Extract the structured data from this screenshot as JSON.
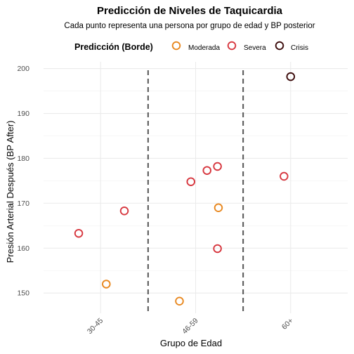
{
  "chart_data": {
    "type": "scatter",
    "title": "Predicción de Niveles de Taquicardia",
    "subtitle": "Cada punto representa una persona por grupo de edad y BP posterior",
    "xlabel": "Grupo de Edad",
    "ylabel": "Presión Arterial Después (BP After)",
    "categories": [
      "30-45",
      "46-59",
      "60+"
    ],
    "ylim": [
      145.5,
      201.5
    ],
    "yticks": [
      150,
      160,
      170,
      180,
      190,
      200
    ],
    "grid": true,
    "legend": {
      "title": "Predicción (Borde)",
      "placement": "top",
      "entries": [
        {
          "name": "Moderada",
          "color": "#E8871E"
        },
        {
          "name": "Severa",
          "color": "#D7373F"
        },
        {
          "name": "Crisis",
          "color": "#3B0A0A"
        }
      ]
    },
    "separators": [
      1.5,
      2.5
    ],
    "series": [
      {
        "name": "Moderada",
        "color": "#E8871E",
        "points": [
          {
            "x": 1.06,
            "y": 152
          },
          {
            "x": 1.83,
            "y": 148.2
          },
          {
            "x": 2.24,
            "y": 169
          }
        ]
      },
      {
        "name": "Severa",
        "color": "#D7373F",
        "points": [
          {
            "x": 0.77,
            "y": 163.3
          },
          {
            "x": 1.25,
            "y": 168.3
          },
          {
            "x": 1.95,
            "y": 174.8
          },
          {
            "x": 2.12,
            "y": 177.3
          },
          {
            "x": 2.23,
            "y": 178.2
          },
          {
            "x": 2.23,
            "y": 159.9
          },
          {
            "x": 2.93,
            "y": 176
          }
        ]
      },
      {
        "name": "Crisis",
        "color": "#3B0A0A",
        "points": [
          {
            "x": 3.0,
            "y": 198.2
          }
        ]
      }
    ]
  }
}
